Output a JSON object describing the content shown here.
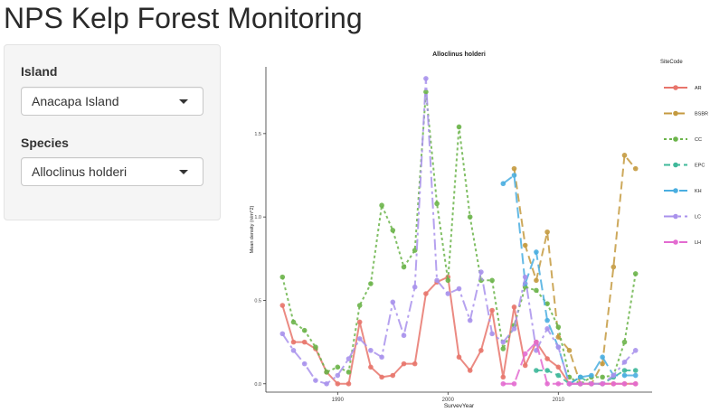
{
  "app": {
    "title": "NPS Kelp Forest Monitoring"
  },
  "sidebar": {
    "island": {
      "label": "Island",
      "value": "Anacapa Island"
    },
    "species": {
      "label": "Species",
      "value": "Alloclinus holderi"
    }
  },
  "chart_data": {
    "type": "line",
    "title": "Alloclinus holderi",
    "xlabel": "SurveyYear",
    "ylabel": "Mean density (n/m^2)",
    "xlim": [
      1983.5,
      2018.5
    ],
    "ylim": [
      -0.05,
      1.9
    ],
    "x_ticks": [
      {
        "v": 1990,
        "label": "1990"
      },
      {
        "v": 2000,
        "label": "2000"
      },
      {
        "v": 2010,
        "label": "2010"
      }
    ],
    "y_ticks": [
      {
        "v": 0,
        "label": "0.0"
      },
      {
        "v": 0.5,
        "label": "0.5"
      },
      {
        "v": 1.0,
        "label": "1.0"
      },
      {
        "v": 1.5,
        "label": "1.5"
      }
    ],
    "grid": false,
    "legend": {
      "title": "SiteCode",
      "position": "right"
    },
    "series": [
      {
        "name": "AR",
        "color": "#E8756C",
        "dash": "",
        "x": [
          1985,
          1986,
          1987,
          1988,
          1989,
          1990,
          1991,
          1992,
          1993,
          1994,
          1995,
          1996,
          1997,
          1998,
          1999,
          2000,
          2001,
          2002,
          2003,
          2004,
          2005,
          2006,
          2007,
          2008,
          2009,
          2010,
          2011,
          2012,
          2013,
          2014,
          2015,
          2016,
          2017
        ],
        "y": [
          0.47,
          0.25,
          0.25,
          0.21,
          0.07,
          0.0,
          0.0,
          0.37,
          0.1,
          0.04,
          0.05,
          0.12,
          0.12,
          0.54,
          0.61,
          0.64,
          0.16,
          0.08,
          0.2,
          0.44,
          0.04,
          0.46,
          0.11,
          0.25,
          0.15,
          0.1,
          0.0,
          0.0,
          0.0,
          0.0,
          0.0,
          0.0,
          0.0
        ]
      },
      {
        "name": "BSBR",
        "color": "#C49A3F",
        "dash": "9,5",
        "x": [
          2006,
          2007,
          2008,
          2009,
          2010,
          2011,
          2012,
          2013,
          2014,
          2015,
          2016,
          2017
        ],
        "y": [
          1.29,
          0.83,
          0.62,
          0.91,
          0.28,
          0.2,
          0.0,
          0.0,
          0.12,
          0.7,
          1.37,
          1.29
        ]
      },
      {
        "name": "CC",
        "color": "#6BB44A",
        "dash": "3,3",
        "x": [
          1985,
          1986,
          1987,
          1988,
          1989,
          1990,
          1991,
          1992,
          1993,
          1994,
          1995,
          1996,
          1997,
          1998,
          1999,
          2000,
          2001,
          2002,
          2003,
          2004,
          2005,
          2006,
          2007,
          2008,
          2009,
          2010,
          2011,
          2012,
          2013,
          2014,
          2015,
          2016,
          2017
        ],
        "y": [
          0.64,
          0.37,
          0.32,
          0.22,
          0.07,
          0.1,
          0.07,
          0.47,
          0.6,
          1.07,
          0.92,
          0.7,
          0.8,
          1.75,
          1.08,
          0.62,
          1.54,
          1.0,
          0.62,
          0.62,
          0.21,
          0.35,
          0.58,
          0.56,
          0.48,
          0.34,
          0.04,
          0.0,
          0.04,
          0.04,
          0.05,
          0.25,
          0.66
        ]
      },
      {
        "name": "EPC",
        "color": "#3FB89A",
        "dash": "7,4",
        "x": [
          2008,
          2009,
          2010,
          2011,
          2012,
          2013,
          2014,
          2015,
          2016,
          2017
        ],
        "y": [
          0.08,
          0.08,
          0.05,
          0.0,
          0.04,
          0.0,
          0.0,
          0.04,
          0.08,
          0.08
        ]
      },
      {
        "name": "KH",
        "color": "#4AAEE0",
        "dash": "12,5",
        "x": [
          2005,
          2006,
          2007,
          2008,
          2009,
          2010,
          2011,
          2012,
          2013,
          2014,
          2015,
          2016,
          2017
        ],
        "y": [
          1.2,
          1.25,
          0.6,
          0.79,
          0.38,
          0.22,
          0.0,
          0.04,
          0.05,
          0.16,
          0.05,
          0.05,
          0.05
        ]
      },
      {
        "name": "LC",
        "color": "#A992EC",
        "dash": "12,4,3,4",
        "x": [
          1985,
          1986,
          1987,
          1988,
          1989,
          1990,
          1991,
          1992,
          1993,
          1994,
          1995,
          1996,
          1997,
          1998,
          1999,
          2000,
          2001,
          2002,
          2003,
          2004,
          2005,
          2006,
          2007,
          2008,
          2009,
          2010,
          2011,
          2012,
          2013,
          2014,
          2015,
          2016,
          2017
        ],
        "y": [
          0.3,
          0.2,
          0.12,
          0.02,
          0.0,
          0.05,
          0.15,
          0.27,
          0.2,
          0.16,
          0.49,
          0.29,
          0.58,
          1.83,
          0.62,
          0.54,
          0.57,
          0.38,
          0.67,
          0.3,
          0.25,
          0.33,
          0.64,
          0.2,
          0.33,
          0.22,
          0.0,
          0.0,
          0.0,
          0.0,
          0.05,
          0.13,
          0.2
        ]
      },
      {
        "name": "LH",
        "color": "#E36BD0",
        "dash": "12,5",
        "x": [
          2005,
          2006,
          2007,
          2008,
          2009,
          2010,
          2011,
          2012,
          2013,
          2014,
          2015,
          2016,
          2017
        ],
        "y": [
          0.0,
          0.0,
          0.18,
          0.25,
          0.0,
          0.0,
          0.0,
          0.0,
          0.0,
          0.0,
          0.0,
          0.0,
          0.0
        ]
      }
    ]
  }
}
